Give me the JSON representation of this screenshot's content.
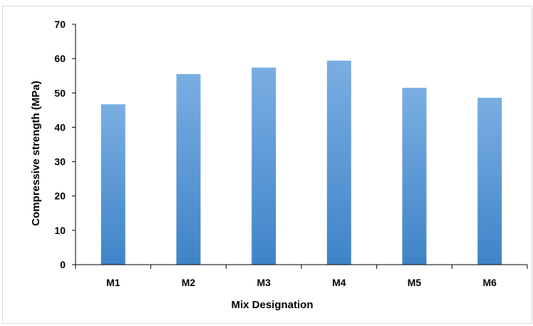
{
  "chart_data": {
    "type": "bar",
    "title": "",
    "xlabel": "Mix Designation",
    "ylabel": "Compressive strength (MPa)",
    "categories": [
      "M1",
      "M2",
      "M3",
      "M4",
      "M5",
      "M6"
    ],
    "values": [
      46.7,
      55.5,
      57.4,
      59.4,
      51.5,
      48.6
    ],
    "ylim": [
      0,
      70
    ],
    "yticks": [
      0,
      10,
      20,
      30,
      40,
      50,
      60,
      70
    ],
    "grid": false,
    "legend": "none",
    "colors": {
      "bar_light": "#7aaee2",
      "bar_dark": "#3f84c8",
      "axis": "#000000"
    }
  }
}
